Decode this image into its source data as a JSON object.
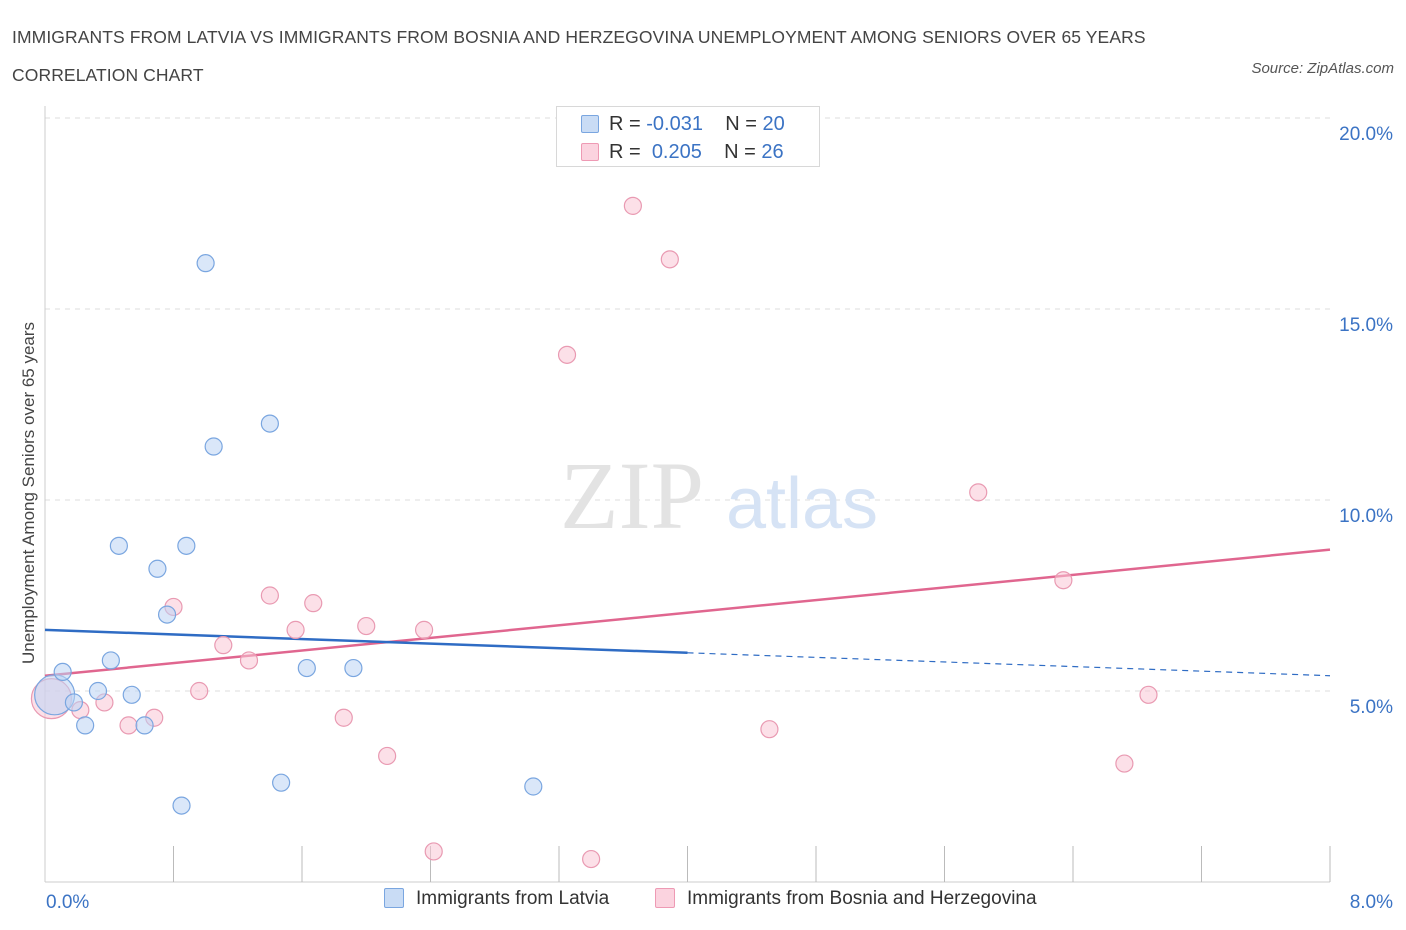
{
  "title": "IMMIGRANTS FROM LATVIA VS IMMIGRANTS FROM BOSNIA AND HERZEGOVINA UNEMPLOYMENT AMONG SENIORS OVER 65 YEARS CORRELATION CHART",
  "source": "Source: ZipAtlas.com",
  "watermark": {
    "zip": "ZIP",
    "atlas": "atlas"
  },
  "legend": {
    "series1": {
      "r_label": "R = ",
      "r_value": "-0.031",
      "n_label": "N = ",
      "n_value": "20"
    },
    "series2": {
      "r_label": "R = ",
      "r_value": "0.205",
      "n_label": "N = ",
      "n_value": "26"
    }
  },
  "colors": {
    "latvia": "#aecbf0",
    "latvia_line": "#2f6cc4",
    "bosnia": "#f7bccd",
    "bosnia_line": "#e0668f",
    "tick_label": "#3b73c4"
  },
  "chart_data": {
    "type": "scatter",
    "title": "IMMIGRANTS FROM LATVIA VS IMMIGRANTS FROM BOSNIA AND HERZEGOVINA UNEMPLOYMENT AMONG SENIORS OVER 65 YEARS CORRELATION CHART",
    "xlabel": "",
    "ylabel": "Unemployment Among Seniors over 65 years",
    "xlim": [
      0,
      8
    ],
    "ylim": [
      0,
      20
    ],
    "x_tick_labels": [
      "0.0%",
      "8.0%"
    ],
    "y_ticks": [
      5,
      10,
      15,
      20
    ],
    "y_tick_labels": [
      "5.0%",
      "10.0%",
      "15.0%",
      "20.0%"
    ],
    "grid": true,
    "legend_position": "top-center",
    "series": [
      {
        "name": "Immigrants from Latvia",
        "color": "#aecbf0",
        "points": [
          [
            0.06,
            4.9
          ],
          [
            0.11,
            5.5
          ],
          [
            0.18,
            4.7
          ],
          [
            0.25,
            4.1
          ],
          [
            0.33,
            5.0
          ],
          [
            0.41,
            5.8
          ],
          [
            0.46,
            8.8
          ],
          [
            0.54,
            4.9
          ],
          [
            0.62,
            4.1
          ],
          [
            0.7,
            8.2
          ],
          [
            0.76,
            7.0
          ],
          [
            0.85,
            2.0
          ],
          [
            0.88,
            8.8
          ],
          [
            1.0,
            16.2
          ],
          [
            1.05,
            11.4
          ],
          [
            1.4,
            12.0
          ],
          [
            1.47,
            2.6
          ],
          [
            1.63,
            5.6
          ],
          [
            1.92,
            5.6
          ],
          [
            3.04,
            2.5
          ]
        ],
        "trend": {
          "x": [
            0.0,
            4.0
          ],
          "y": [
            6.6,
            6.0
          ]
        },
        "trend_extension": {
          "x": [
            4.0,
            8.0
          ],
          "y": [
            6.0,
            5.4
          ]
        }
      },
      {
        "name": "Immigrants from Bosnia and Herzegovina",
        "color": "#f7bccd",
        "points": [
          [
            0.04,
            4.8
          ],
          [
            0.22,
            4.5
          ],
          [
            0.37,
            4.7
          ],
          [
            0.52,
            4.1
          ],
          [
            0.8,
            7.2
          ],
          [
            0.68,
            4.3
          ],
          [
            0.96,
            5.0
          ],
          [
            1.11,
            6.2
          ],
          [
            1.27,
            5.8
          ],
          [
            1.4,
            7.5
          ],
          [
            1.56,
            6.6
          ],
          [
            1.67,
            7.3
          ],
          [
            1.86,
            4.3
          ],
          [
            2.0,
            6.7
          ],
          [
            2.13,
            3.3
          ],
          [
            2.36,
            6.6
          ],
          [
            2.42,
            0.8
          ],
          [
            3.25,
            13.8
          ],
          [
            3.4,
            0.6
          ],
          [
            3.66,
            17.7
          ],
          [
            3.89,
            16.3
          ],
          [
            4.51,
            4.0
          ],
          [
            5.81,
            10.2
          ],
          [
            6.34,
            7.9
          ],
          [
            6.72,
            3.1
          ],
          [
            6.87,
            4.9
          ]
        ],
        "trend": {
          "x": [
            0.0,
            8.0
          ],
          "y": [
            5.4,
            8.7
          ]
        }
      }
    ]
  }
}
